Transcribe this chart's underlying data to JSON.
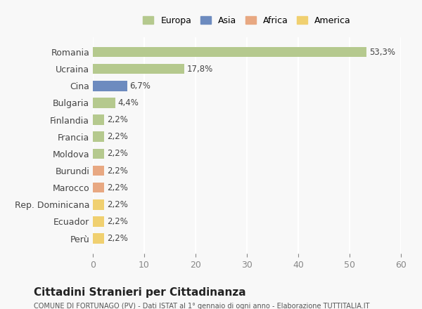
{
  "categories": [
    "Romania",
    "Ucraina",
    "Cina",
    "Bulgaria",
    "Finlandia",
    "Francia",
    "Moldova",
    "Burundi",
    "Marocco",
    "Rep. Dominicana",
    "Ecuador",
    "Perù"
  ],
  "values": [
    53.3,
    17.8,
    6.7,
    4.4,
    2.2,
    2.2,
    2.2,
    2.2,
    2.2,
    2.2,
    2.2,
    2.2
  ],
  "labels": [
    "53,3%",
    "17,8%",
    "6,7%",
    "4,4%",
    "2,2%",
    "2,2%",
    "2,2%",
    "2,2%",
    "2,2%",
    "2,2%",
    "2,2%",
    "2,2%"
  ],
  "colors": [
    "#b5c98e",
    "#b5c98e",
    "#6d8bbf",
    "#b5c98e",
    "#b5c98e",
    "#b5c98e",
    "#b5c98e",
    "#e8a882",
    "#e8a882",
    "#f0d070",
    "#f0d070",
    "#f0d070"
  ],
  "legend_labels": [
    "Europa",
    "Asia",
    "Africa",
    "America"
  ],
  "legend_colors": [
    "#b5c98e",
    "#6d8bbf",
    "#e8a882",
    "#f0d070"
  ],
  "xlim": [
    0,
    60
  ],
  "xticks": [
    0,
    10,
    20,
    30,
    40,
    50,
    60
  ],
  "title": "Cittadini Stranieri per Cittadinanza",
  "subtitle": "COMUNE DI FORTUNAGO (PV) - Dati ISTAT al 1° gennaio di ogni anno - Elaborazione TUTTITALIA.IT",
  "bg_color": "#f8f8f8",
  "grid_color": "#ffffff",
  "bar_height": 0.6
}
